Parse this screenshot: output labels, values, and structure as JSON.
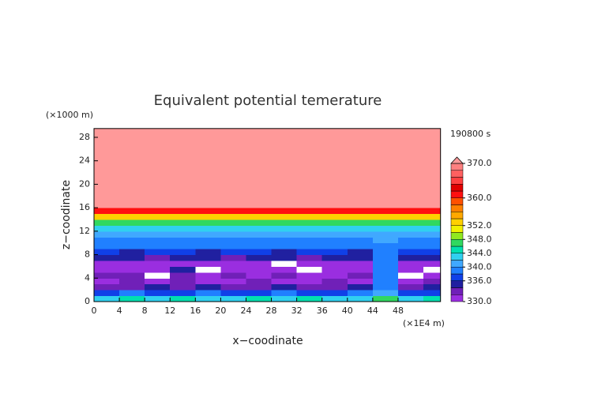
{
  "chart_data": {
    "type": "contour",
    "title": "Equivalent potential temerature",
    "y_unit": "(×1000 m)",
    "x_unit": "(×1E4 m)",
    "time_label": "190800 s",
    "xlabel": "x−coodinate",
    "ylabel": "z−coodinate",
    "xlim": [
      0,
      54.7
    ],
    "ylim": [
      0,
      29.5
    ],
    "xticks": [
      0,
      4,
      8,
      12,
      16,
      20,
      24,
      28,
      32,
      36,
      40,
      44,
      48
    ],
    "yticks": [
      0,
      4,
      8,
      12,
      16,
      20,
      24,
      28
    ],
    "x_edges": [
      0,
      4,
      8,
      12,
      16,
      20,
      24,
      28,
      32,
      36,
      40,
      44,
      48,
      52,
      54.7
    ],
    "z_edges": [
      0,
      1,
      2,
      3,
      4,
      5,
      6,
      7,
      8,
      9,
      10,
      11,
      12,
      13,
      14,
      15,
      16,
      29.5
    ],
    "values": [
      [
        342,
        344,
        342,
        344,
        342,
        342,
        344,
        342,
        344,
        342,
        342,
        346,
        342,
        344
      ],
      [
        336,
        338,
        336,
        336,
        338,
        336,
        336,
        338,
        336,
        336,
        338,
        340,
        336,
        336
      ],
      [
        332,
        332,
        334,
        332,
        334,
        332,
        332,
        334,
        332,
        332,
        334,
        338,
        332,
        334
      ],
      [
        331,
        332,
        331,
        333,
        331,
        331,
        332,
        331,
        331,
        332,
        331,
        338,
        331,
        332
      ],
      [
        333,
        332,
        329,
        332,
        331,
        332,
        331,
        333,
        331,
        331,
        332,
        338,
        329,
        331
      ],
      [
        331,
        331,
        331,
        334,
        329,
        331,
        331,
        331,
        329,
        331,
        331,
        338,
        331,
        329
      ],
      [
        331,
        330,
        331,
        331,
        331,
        330,
        331,
        329,
        331,
        331,
        330,
        338,
        330,
        331
      ],
      [
        334,
        334,
        333,
        335,
        334,
        333,
        334,
        334,
        333,
        334,
        334,
        338,
        334,
        334
      ],
      [
        336,
        335,
        336,
        336,
        335,
        336,
        336,
        335,
        336,
        336,
        335,
        338,
        336,
        336
      ],
      [
        338,
        338,
        338,
        338,
        338,
        338,
        338,
        338,
        338,
        338,
        338,
        339,
        338,
        338
      ],
      [
        339,
        339,
        339,
        339,
        339,
        339,
        339,
        339,
        339,
        339,
        339,
        340,
        339,
        339
      ],
      [
        340,
        340,
        340,
        340,
        340,
        340,
        340,
        340,
        340,
        340,
        340,
        341,
        340,
        340
      ],
      [
        342,
        342,
        342,
        342,
        342,
        342,
        342,
        342,
        342,
        342,
        342,
        343,
        342,
        342
      ],
      [
        346,
        346,
        346,
        346,
        346,
        346,
        346,
        346,
        346,
        346,
        346,
        346,
        346,
        346
      ],
      [
        352,
        352,
        352,
        352,
        352,
        352,
        352,
        352,
        352,
        352,
        352,
        352,
        352,
        352
      ],
      [
        360,
        360,
        360,
        360,
        360,
        360,
        360,
        360,
        360,
        360,
        360,
        360,
        360,
        360
      ],
      [
        372,
        372,
        372,
        372,
        372,
        372,
        372,
        372,
        372,
        372,
        372,
        372,
        372,
        372
      ]
    ],
    "levels": [
      330,
      332,
      334,
      336,
      338,
      340,
      342,
      344,
      346,
      348,
      350,
      352,
      354,
      356,
      358,
      360,
      362,
      364,
      366,
      368,
      370
    ],
    "colors": [
      "#9a2ee0",
      "#7020b8",
      "#2020a0",
      "#1040e8",
      "#2080ff",
      "#40a8ff",
      "#30d0f0",
      "#00e0b0",
      "#30d860",
      "#90e820",
      "#f0f000",
      "#ffd000",
      "#ffa800",
      "#ff8000",
      "#ff5000",
      "#ff1010",
      "#e00000",
      "#ff4040",
      "#ff6060",
      "#ff8080"
    ],
    "under_color": "#ffffff",
    "over_color": "#ff9999",
    "cbar_ticks": [
      {
        "value": 330,
        "label": "330.0"
      },
      {
        "value": 336,
        "label": "336.0"
      },
      {
        "value": 340,
        "label": "340.0"
      },
      {
        "value": 344,
        "label": "344.0"
      },
      {
        "value": 348,
        "label": "348.0"
      },
      {
        "value": 352,
        "label": "352.0"
      },
      {
        "value": 360,
        "label": "360.0"
      },
      {
        "value": 370,
        "label": "370.0"
      }
    ]
  }
}
